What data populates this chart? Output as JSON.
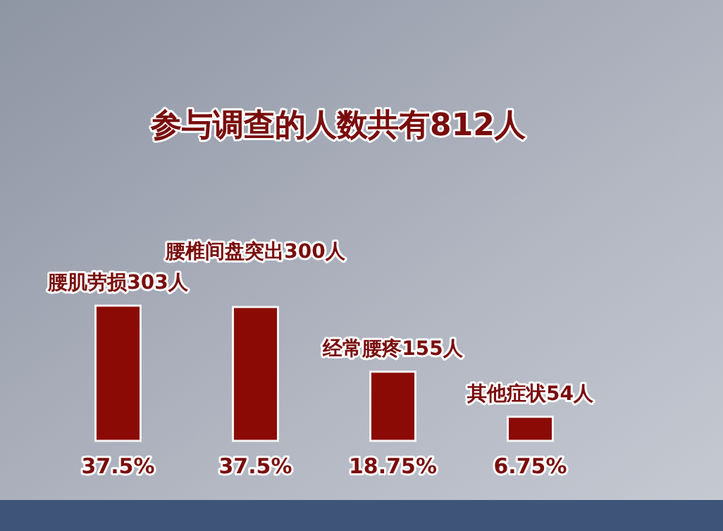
{
  "chart_data": {
    "type": "bar",
    "title": "参与调查的人数共有812人",
    "categories": [
      "37.5%",
      "37.5%",
      "18.75%",
      "6.75%"
    ],
    "values": [
      303,
      300,
      155,
      54
    ],
    "value_labels": [
      "腰肌劳损303人",
      "腰椎间盘突出300人",
      "经常腰疼155人",
      "其他症状54人"
    ],
    "color": "#8b0a05"
  }
}
